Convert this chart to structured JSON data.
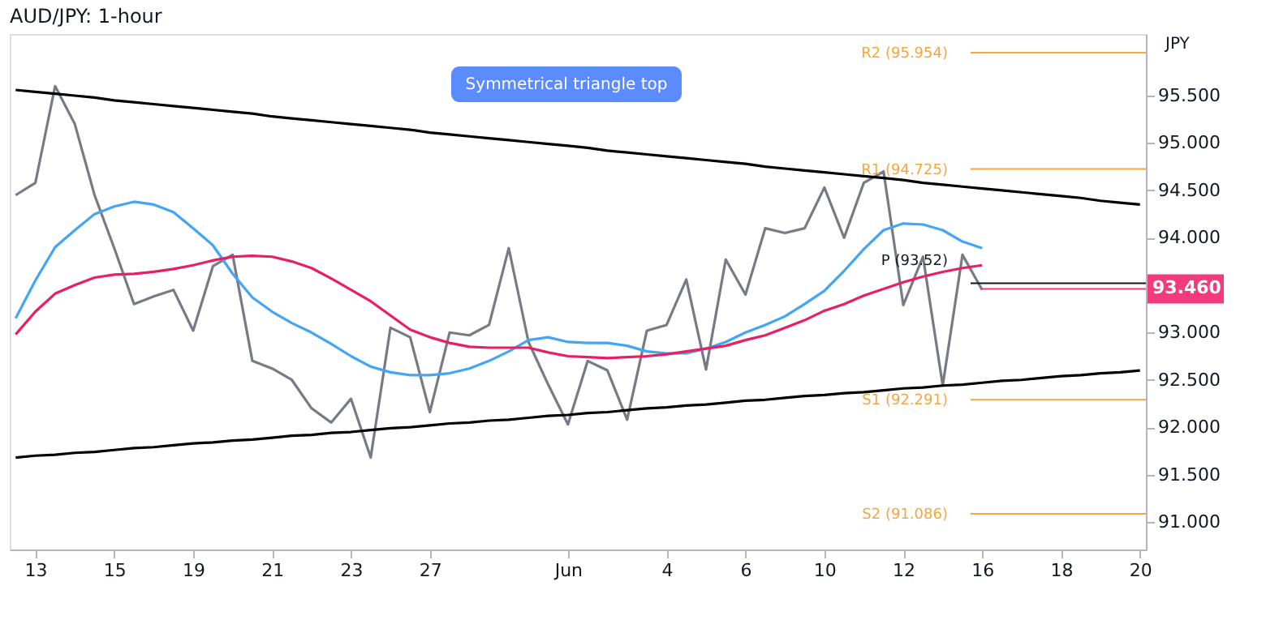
{
  "chart_data": {
    "type": "line",
    "title": "AUD/JPY: 1-hour",
    "ylabel": "JPY",
    "categories": [
      null,
      "13",
      null,
      null,
      null,
      "15",
      null,
      null,
      null,
      "19",
      null,
      null,
      null,
      "21",
      null,
      null,
      null,
      "23",
      null,
      null,
      null,
      "27",
      null,
      null,
      null,
      null,
      null,
      null,
      "Jun",
      null,
      null,
      null,
      null,
      "4",
      null,
      null,
      null,
      "6",
      null,
      null,
      null,
      "10",
      null,
      null,
      null,
      "12",
      null,
      null,
      null,
      "16",
      null,
      null,
      null,
      "18",
      null,
      null,
      null,
      "20"
    ],
    "ylim": [
      90.71,
      96.15
    ],
    "yticks": [
      {
        "value": 91,
        "label": "91.000"
      },
      {
        "value": 91.5,
        "label": "91.500"
      },
      {
        "value": 92,
        "label": "92.000"
      },
      {
        "value": 92.5,
        "label": "92.500"
      },
      {
        "value": 93,
        "label": "93.000"
      },
      {
        "value": 94,
        "label": "94.000"
      },
      {
        "value": 94.5,
        "label": "94.500"
      },
      {
        "value": 95,
        "label": "95.000"
      },
      {
        "value": 95.5,
        "label": "95.500"
      }
    ],
    "grid": false,
    "line_style": "solid",
    "marker": "none",
    "series": [
      {
        "color": "#787b86",
        "values": [
          94.45,
          94.58,
          95.6,
          95.2,
          94.45,
          93.89,
          93.3,
          93.38,
          93.45,
          93.02,
          93.7,
          93.82,
          92.7,
          92.62,
          92.5,
          92.2,
          92.05,
          92.3,
          91.68,
          93.05,
          92.95,
          92.16,
          93.0,
          92.97,
          93.08,
          93.89,
          92.9,
          92.45,
          92.03,
          92.7,
          92.6,
          92.08,
          93.02,
          93.08,
          93.56,
          92.61,
          93.77,
          93.4,
          94.1,
          94.05,
          94.1,
          94.53,
          94.0,
          94.58,
          94.7,
          93.29,
          93.8,
          92.44,
          93.82,
          93.45,
          null,
          null,
          null,
          null,
          null,
          null,
          null,
          null
        ]
      },
      {
        "color": "#42a5f5",
        "values": [
          93.15,
          93.55,
          93.9,
          94.08,
          94.25,
          94.33,
          94.38,
          94.35,
          94.27,
          94.1,
          93.92,
          93.62,
          93.37,
          93.22,
          93.1,
          93.0,
          92.88,
          92.75,
          92.64,
          92.58,
          92.55,
          92.55,
          92.57,
          92.62,
          92.7,
          92.8,
          92.92,
          92.95,
          92.9,
          92.89,
          92.89,
          92.86,
          92.8,
          92.78,
          92.78,
          92.83,
          92.9,
          93.0,
          93.08,
          93.17,
          93.3,
          93.44,
          93.65,
          93.88,
          94.08,
          94.15,
          94.14,
          94.08,
          93.96,
          93.89,
          null,
          null,
          null,
          null,
          null,
          null,
          null,
          null
        ]
      },
      {
        "color": "#e91e63",
        "values": [
          92.98,
          93.22,
          93.41,
          93.5,
          93.58,
          93.61,
          93.62,
          93.64,
          93.67,
          93.71,
          93.76,
          93.8,
          93.81,
          93.8,
          93.75,
          93.68,
          93.57,
          93.45,
          93.33,
          93.18,
          93.03,
          92.95,
          92.89,
          92.85,
          92.84,
          92.84,
          92.84,
          92.79,
          92.75,
          92.74,
          92.73,
          92.74,
          92.75,
          92.77,
          92.8,
          92.83,
          92.86,
          92.92,
          92.97,
          93.05,
          93.13,
          93.23,
          93.3,
          93.39,
          93.46,
          93.53,
          93.59,
          93.64,
          93.68,
          93.71,
          null,
          null,
          null,
          null,
          null,
          null,
          null,
          null
        ]
      },
      {
        "color": "#000000",
        "values": [
          95.56,
          95.54,
          95.52,
          95.5,
          95.48,
          95.45,
          95.43,
          95.41,
          95.39,
          95.37,
          95.35,
          95.33,
          95.31,
          95.28,
          95.26,
          95.24,
          95.22,
          95.2,
          95.18,
          95.16,
          95.14,
          95.11,
          95.09,
          95.07,
          95.05,
          95.03,
          95.01,
          94.99,
          94.97,
          94.95,
          94.92,
          94.9,
          94.88,
          94.86,
          94.84,
          94.82,
          94.8,
          94.78,
          94.75,
          94.73,
          94.71,
          94.69,
          94.67,
          94.65,
          94.63,
          94.61,
          94.58,
          94.56,
          94.54,
          94.52,
          94.5,
          94.48,
          94.46,
          94.44,
          94.42,
          94.39,
          94.37,
          94.35
        ]
      },
      {
        "color": "#000000",
        "values": [
          91.68,
          91.7,
          91.71,
          91.73,
          91.74,
          91.76,
          91.78,
          91.79,
          91.81,
          91.83,
          91.84,
          91.86,
          91.87,
          91.89,
          91.91,
          91.92,
          91.94,
          91.95,
          91.97,
          91.99,
          92.0,
          92.02,
          92.04,
          92.05,
          92.07,
          92.08,
          92.1,
          92.12,
          92.13,
          92.15,
          92.16,
          92.18,
          92.2,
          92.21,
          92.23,
          92.24,
          92.26,
          92.28,
          92.29,
          92.31,
          92.33,
          92.34,
          92.36,
          92.37,
          92.39,
          92.41,
          92.42,
          92.44,
          92.45,
          92.47,
          92.49,
          92.5,
          92.52,
          92.54,
          92.55,
          92.57,
          92.58,
          92.6
        ]
      }
    ],
    "ref_lines": [
      {
        "axis": "y",
        "value": 95.954,
        "label": "R2 (95.954)",
        "color": "#f7a541"
      },
      {
        "axis": "y",
        "value": 94.725,
        "label": "R1 (94.725)",
        "color": "#f7a541"
      },
      {
        "axis": "y",
        "value": 93.52,
        "label": "P (93.52)",
        "color": "#131722"
      },
      {
        "axis": "y",
        "value": 92.291,
        "label": "S1 (92.291)",
        "color": "#f7a541"
      },
      {
        "axis": "y",
        "value": 91.086,
        "label": "S2 (91.086)",
        "color": "#f7a541"
      },
      {
        "axis": "y",
        "value": 93.46,
        "label": "93.460",
        "color": "#f23b7d"
      }
    ],
    "annotations": [
      "Symmetrical triangle top"
    ]
  }
}
